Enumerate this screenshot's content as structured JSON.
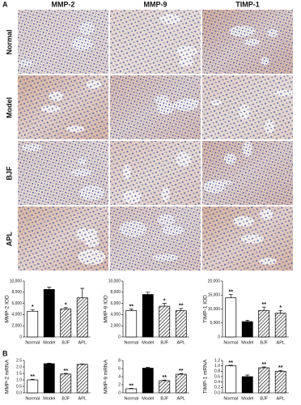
{
  "panel_labels": [
    "A",
    "B"
  ],
  "column_headers": [
    "MMP-2",
    "MMP-9",
    "TIMP-1"
  ],
  "row_labels": [
    "Normal",
    "Model",
    "BJF",
    "APL"
  ],
  "chart_data": [
    {
      "type": "bar",
      "ylabel": "MMP-2 IOD",
      "categories": [
        "Normal",
        "Model",
        "BJF",
        "APL"
      ],
      "values": [
        4600,
        8500,
        5000,
        7000
      ],
      "errors": [
        300,
        400,
        250,
        1700
      ],
      "annotations": [
        "*",
        null,
        "*",
        null
      ],
      "fills": [
        "#ffffff",
        "#000000",
        "hatch",
        "hatch"
      ],
      "ylim": [
        0,
        10000
      ],
      "yticks": [
        0,
        {
          "value": 2000,
          "label": "2,000"
        },
        {
          "value": 4000,
          "label": "4,000"
        },
        {
          "value": 6000,
          "label": "6,000"
        },
        {
          "value": 8000,
          "label": "8,000"
        },
        {
          "value": 10000,
          "label": "10,000"
        }
      ]
    },
    {
      "type": "bar",
      "ylabel": "MMP-9 IOD",
      "categories": [
        "Normal",
        "Model",
        "BJF",
        "APL"
      ],
      "values": [
        4700,
        7600,
        5500,
        4700
      ],
      "errors": [
        300,
        400,
        500,
        400
      ],
      "annotations": [
        "**",
        null,
        "*",
        "**"
      ],
      "fills": [
        "#ffffff",
        "#000000",
        "hatch",
        "hatch"
      ],
      "ylim": [
        0,
        10000
      ],
      "yticks": [
        0,
        {
          "value": 2000,
          "label": "2,000"
        },
        {
          "value": 4000,
          "label": "4,000"
        },
        {
          "value": 6000,
          "label": "6,000"
        },
        {
          "value": 8000,
          "label": "8,000"
        },
        {
          "value": 10000,
          "label": "10,000"
        }
      ]
    },
    {
      "type": "bar",
      "ylabel": "TIMP-1 IOD",
      "categories": [
        "Normal",
        "Model",
        "BJF",
        "APL"
      ],
      "values": [
        14000,
        5500,
        9500,
        8500
      ],
      "errors": [
        1200,
        500,
        1200,
        1000
      ],
      "annotations": [
        "**",
        null,
        "**",
        "*"
      ],
      "fills": [
        "#ffffff",
        "#000000",
        "hatch",
        "hatch"
      ],
      "ylim": [
        0,
        20000
      ],
      "yticks": [
        0,
        {
          "value": 5000,
          "label": "5,000"
        },
        {
          "value": 10000,
          "label": "10,000"
        },
        {
          "value": 15000,
          "label": "15,000"
        },
        {
          "value": 20000,
          "label": "20,000"
        }
      ]
    },
    {
      "type": "bar",
      "ylabel": "MMP-2 mRNA",
      "categories": [
        "Normal",
        "Model",
        "BJF",
        "APL"
      ],
      "values": [
        1.0,
        2.25,
        1.45,
        2.2
      ],
      "errors": [
        0.05,
        0.04,
        0.05,
        0.03
      ],
      "annotations": [
        "**",
        null,
        "**",
        null
      ],
      "fills": [
        "#ffffff",
        "#000000",
        "hatch",
        "hatch"
      ],
      "ylim": [
        0,
        2.5
      ],
      "yticks": [
        {
          "value": 0,
          "label": "0.0"
        },
        0.5,
        {
          "value": 1,
          "label": "1.0"
        },
        1.5,
        {
          "value": 2,
          "label": "2.0"
        },
        2.5
      ]
    },
    {
      "type": "bar",
      "ylabel": "MMP-9 mRNA",
      "categories": [
        "Normal",
        "Model",
        "BJF",
        "APL"
      ],
      "values": [
        1.0,
        6.1,
        3.0,
        4.6
      ],
      "errors": [
        0.1,
        0.2,
        0.15,
        0.15
      ],
      "annotations": [
        "**",
        null,
        "**",
        "**"
      ],
      "fills": [
        "#ffffff",
        "#000000",
        "hatch",
        "hatch"
      ],
      "ylim": [
        0,
        8
      ],
      "yticks": [
        0,
        2,
        4,
        6,
        8
      ]
    },
    {
      "type": "bar",
      "ylabel": "TIMP-1 mRNA",
      "categories": [
        "Normal",
        "Model",
        "BJF",
        "APL"
      ],
      "values": [
        1.0,
        0.6,
        0.93,
        0.8
      ],
      "errors": [
        0.02,
        0.06,
        0.03,
        0.03
      ],
      "annotations": [
        "**",
        null,
        "**",
        "**"
      ],
      "fills": [
        "#ffffff",
        "#000000",
        "hatch",
        "hatch"
      ],
      "ylim": [
        0,
        1.2
      ],
      "yticks": [
        {
          "value": 0,
          "label": "0.0"
        },
        0.2,
        0.4,
        0.6,
        0.8,
        {
          "value": 1,
          "label": "1.0"
        },
        1.2
      ]
    }
  ]
}
